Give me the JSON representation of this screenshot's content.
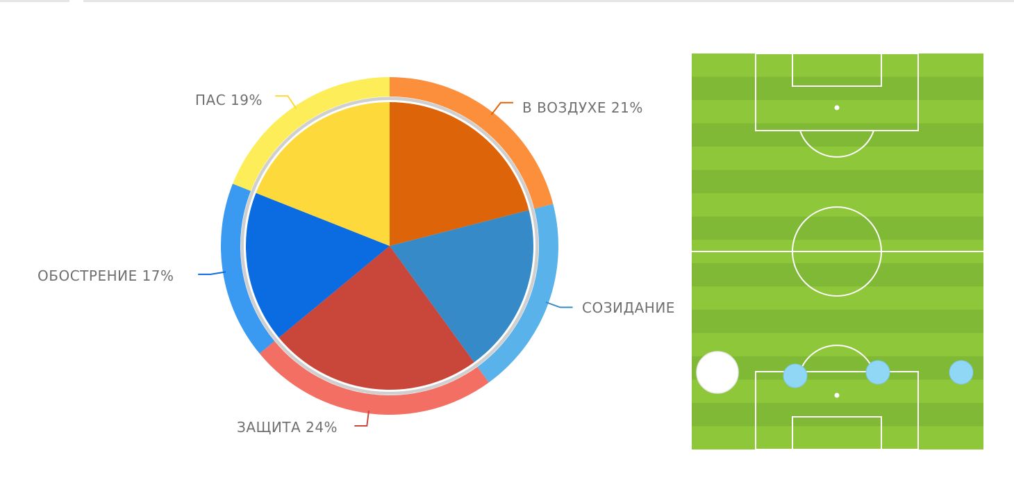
{
  "chart_data": {
    "type": "pie",
    "title": "",
    "slices": [
      {
        "label": "В ВОЗДУХЕ 21%",
        "name": "В ВОЗДУХЕ",
        "value": 21,
        "color": "#dd6408",
        "ring_color": "#fb8f3c"
      },
      {
        "label": "СОЗИДАНИЕ",
        "name": "СОЗИДАНИЕ",
        "value": 19,
        "color": "#368ac8",
        "ring_color": "#5ab2ea"
      },
      {
        "label": "ЗАЩИТА 24%",
        "name": "ЗАЩИТА",
        "value": 24,
        "color": "#c9463a",
        "ring_color": "#f46f63"
      },
      {
        "label": "ОБОСТРЕНИЕ 17%",
        "name": "ОБОСТРЕНИЕ",
        "value": 17,
        "color": "#0b6be0",
        "ring_color": "#3a99f0"
      },
      {
        "label": "ПАС 19%",
        "name": "ПАС",
        "value": 19,
        "color": "#fed93c",
        "ring_color": "#fdee59"
      }
    ]
  },
  "pitch": {
    "grass_light": "#8ec73a",
    "grass_dark": "#80b935",
    "line_color": "#ffffff",
    "players": [
      {
        "name": "large-white-marker",
        "color": "#ffffff"
      },
      {
        "name": "player-dot",
        "color": "#8fd7f4"
      },
      {
        "name": "player-dot",
        "color": "#8fd7f4"
      },
      {
        "name": "player-dot",
        "color": "#8fd7f4"
      }
    ]
  }
}
